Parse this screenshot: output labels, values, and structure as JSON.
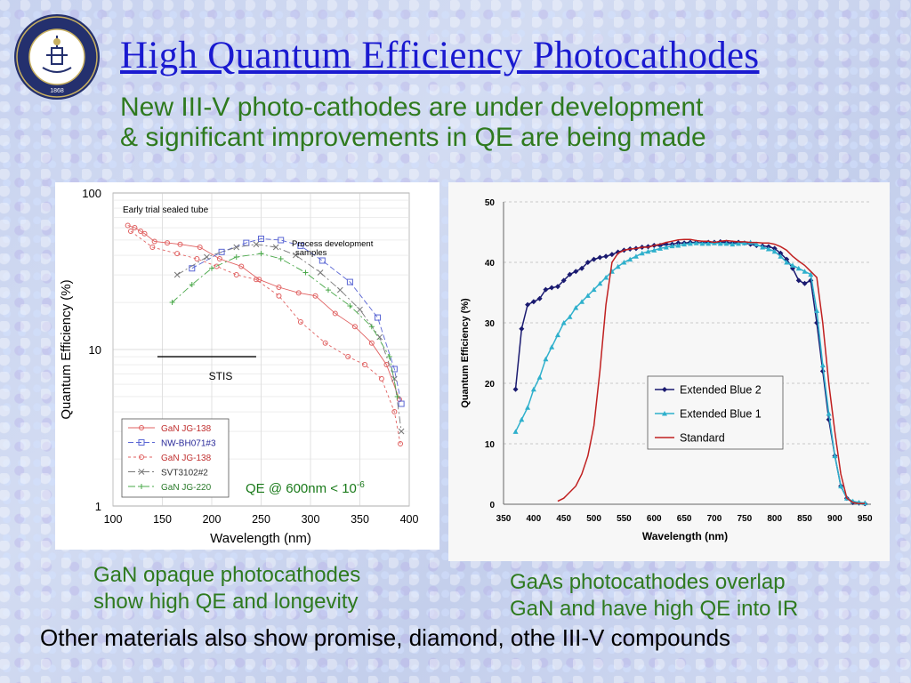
{
  "slide": {
    "title": "High Quantum Efficiency Photocathodes",
    "subtitle_line1": "New III-V photo-cathodes are under development",
    "subtitle_line2": "& significant improvements in QE are being made",
    "caption_left_line1": "GaN opaque photocathodes",
    "caption_left_line2": "show high QE and longevity",
    "caption_right_line1": "GaAs photocathodes overlap",
    "caption_right_line2": "GaN and have high QE into IR",
    "footer": "Other materials also show promise, diamond, othe III-V compounds",
    "seal_icon": "university-of-california-seal-icon",
    "seal_text": "THE UNIVERSITY OF CALIFORNIA BERKELEY 1868",
    "title_color": "#1a1ad0",
    "text_green": "#2f7a1f"
  },
  "chart_data": [
    {
      "type": "line",
      "ylabel": "Quantum Efficiency (%)",
      "xlabel": "Wavelength (nm)",
      "x_ticks": [
        "100",
        "150",
        "200",
        "250",
        "300",
        "350",
        "400"
      ],
      "y_ticks": [
        "1",
        "10",
        "100"
      ],
      "xlim": [
        100,
        400
      ],
      "ylim": [
        1,
        100
      ],
      "yscale": "log",
      "grid": true,
      "annotations": {
        "early_trial": "Early trial sealed tube",
        "process_line1": "Process development",
        "process_line2": "samples",
        "stis": "STIS",
        "qe_base": "QE @ 600nm < 10",
        "qe_exp": "-6"
      },
      "stis_reference": {
        "x": [
          145,
          245
        ],
        "y": 9.0
      },
      "legend_position": "bottom-left",
      "series": [
        {
          "name": "GaN JG-138",
          "color": "#e06060",
          "marker": "circle",
          "dash": "",
          "x": [
            115,
            122,
            128,
            132,
            142,
            155,
            168,
            188,
            208,
            230,
            248,
            268,
            288,
            305,
            325,
            345,
            362,
            377,
            390
          ],
          "y": [
            62,
            60,
            57,
            55,
            49,
            48,
            47,
            45,
            38,
            34,
            28,
            25,
            23,
            22,
            17,
            14,
            11,
            8,
            4.8
          ]
        },
        {
          "name": "NW-BH071#3",
          "color": "#5a66d4",
          "marker": "square",
          "dash": "6,3",
          "x": [
            180,
            210,
            235,
            250,
            270,
            290,
            312,
            340,
            368,
            385,
            392
          ],
          "y": [
            33,
            42,
            48,
            51,
            50,
            46,
            37,
            27,
            16,
            7.5,
            4.5
          ]
        },
        {
          "name": "GaN JG-138",
          "color": "#e06060",
          "marker": "circle",
          "dash": "3,3",
          "x": [
            118,
            140,
            165,
            185,
            205,
            225,
            245,
            268,
            290,
            315,
            338,
            355,
            372,
            385,
            391
          ],
          "y": [
            57,
            45,
            41,
            38,
            34,
            30,
            28,
            22,
            15,
            11,
            9,
            8,
            6.5,
            4,
            2.5
          ]
        },
        {
          "name": "SVT3102#2",
          "color": "#777777",
          "marker": "x",
          "dash": "8,3,2,3",
          "x": [
            165,
            195,
            225,
            245,
            265,
            285,
            310,
            330,
            350,
            370,
            385,
            392
          ],
          "y": [
            30,
            39,
            45,
            47,
            45,
            40,
            31,
            24,
            18,
            12,
            6.5,
            3
          ]
        },
        {
          "name": "GaN JG-220",
          "color": "#4aa84a",
          "marker": "plus",
          "dash": "8,3,2,3",
          "x": [
            160,
            180,
            200,
            225,
            250,
            270,
            295,
            318,
            340,
            362,
            380,
            388
          ],
          "y": [
            20,
            26,
            33,
            39,
            41,
            38,
            31,
            24,
            19,
            14,
            9,
            5
          ]
        }
      ]
    },
    {
      "type": "line",
      "ylabel": "Quantum Efficiency (%)",
      "xlabel": "Wavelength (nm)",
      "x_ticks": [
        "350",
        "400",
        "450",
        "500",
        "550",
        "600",
        "650",
        "700",
        "750",
        "800",
        "850",
        "900",
        "950"
      ],
      "y_ticks": [
        "0",
        "10",
        "20",
        "30",
        "40",
        "50"
      ],
      "xlim": [
        350,
        960
      ],
      "ylim": [
        0,
        50
      ],
      "grid": true,
      "legend_position": "center-right",
      "series": [
        {
          "name": "Extended Blue 2",
          "color": "#1a1a70",
          "marker": "diamond",
          "x": [
            370,
            380,
            390,
            400,
            410,
            420,
            430,
            440,
            450,
            460,
            470,
            480,
            490,
            500,
            510,
            520,
            530,
            540,
            550,
            560,
            570,
            580,
            590,
            600,
            610,
            620,
            630,
            640,
            650,
            660,
            670,
            680,
            690,
            700,
            710,
            720,
            730,
            740,
            750,
            760,
            770,
            780,
            790,
            800,
            810,
            820,
            830,
            840,
            850,
            860,
            870,
            880,
            890,
            900,
            910,
            920,
            930,
            940,
            950
          ],
          "y": [
            19,
            29,
            33,
            33.5,
            34,
            35.5,
            35.8,
            36,
            37,
            38,
            38.5,
            39,
            40,
            40.5,
            40.8,
            41,
            41.3,
            41.7,
            42,
            42.2,
            42.3,
            42.5,
            42.6,
            42.8,
            42.8,
            43,
            43,
            43.2,
            43.2,
            43.3,
            43.3,
            43.2,
            43.3,
            43.3,
            43.4,
            43.3,
            43.2,
            43.3,
            43.2,
            43,
            42.8,
            42.7,
            42.6,
            42.3,
            41.5,
            40.5,
            39,
            37,
            36.5,
            37,
            30,
            22,
            14,
            8,
            3,
            1,
            0.3,
            0.2,
            0.1
          ]
        },
        {
          "name": "Extended Blue 1",
          "color": "#2fb0cc",
          "marker": "triangle",
          "x": [
            370,
            380,
            390,
            400,
            410,
            420,
            430,
            440,
            450,
            460,
            470,
            480,
            490,
            500,
            510,
            520,
            530,
            540,
            550,
            560,
            570,
            580,
            590,
            600,
            610,
            620,
            630,
            640,
            650,
            660,
            670,
            680,
            690,
            700,
            710,
            720,
            730,
            740,
            750,
            760,
            770,
            780,
            790,
            800,
            810,
            820,
            830,
            840,
            850,
            860,
            870,
            880,
            890,
            900,
            910,
            920,
            930,
            940,
            950
          ],
          "y": [
            12,
            14,
            16,
            19,
            21,
            24,
            26,
            28,
            30,
            31,
            32.5,
            33.5,
            34.5,
            35.5,
            36.5,
            37.5,
            38.5,
            39.3,
            40,
            40.5,
            41,
            41.5,
            41.8,
            42,
            42.3,
            42.5,
            42.7,
            42.8,
            43,
            43.1,
            43.2,
            43.1,
            43.1,
            43.2,
            43.1,
            43.1,
            43,
            43.1,
            43.2,
            43.3,
            43,
            42.5,
            42.2,
            41.8,
            41,
            40,
            39.5,
            39,
            38.5,
            38,
            32,
            23,
            15,
            8,
            3,
            1,
            0.5,
            0.3,
            0.2
          ]
        },
        {
          "name": "Standard",
          "color": "#c02020",
          "marker": "",
          "x": [
            440,
            450,
            460,
            470,
            480,
            490,
            500,
            510,
            520,
            530,
            540,
            550,
            560,
            570,
            580,
            590,
            600,
            610,
            620,
            630,
            640,
            650,
            660,
            670,
            680,
            690,
            700,
            710,
            720,
            730,
            740,
            750,
            760,
            770,
            780,
            790,
            800,
            810,
            820,
            830,
            840,
            850,
            860,
            870,
            880,
            890,
            900,
            910,
            920,
            930,
            940,
            950
          ],
          "y": [
            0.5,
            1,
            2,
            3,
            5,
            8,
            13,
            22,
            33,
            40,
            41.5,
            42,
            42.2,
            42.3,
            42.5,
            42.5,
            42.8,
            43,
            43.3,
            43.5,
            43.7,
            43.8,
            43.8,
            43.6,
            43.5,
            43.5,
            43.3,
            43.5,
            43.6,
            43.5,
            43.4,
            43.4,
            43.3,
            43.3,
            43.2,
            43.2,
            43,
            42.6,
            42,
            41,
            40.2,
            39.5,
            38.5,
            37.5,
            30,
            20,
            12,
            5,
            1,
            0.3,
            0.1,
            0.1
          ]
        }
      ]
    }
  ]
}
